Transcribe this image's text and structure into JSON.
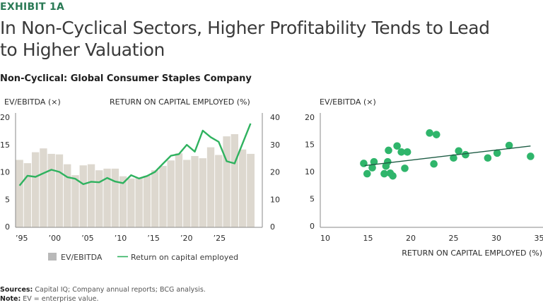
{
  "header": {
    "exhibit": "EXHIBIT 1A",
    "title": "In Non-Cyclical Sectors, Higher Profitability Tends to Lead to Higher Valuation",
    "subtitle": "Non-Cyclical: Global Consumer Staples Company"
  },
  "colors": {
    "bar": "#ddd8cf",
    "line": "#2fb25f",
    "dot": "#2fb56b",
    "trend": "#1d5c44",
    "legend_swatch": "#b9b9b9",
    "axis": "#8a8a8a"
  },
  "chart_data": [
    {
      "type": "bar+line",
      "title": "Non-Cyclical: Global Consumer Staples Company",
      "ylabel_left": "EV/EBITDA (×)",
      "ylabel_right": "RETURN ON CAPITAL EMPLOYED (%)",
      "ylim_left": [
        0,
        20
      ],
      "ylim_right": [
        0,
        40
      ],
      "yticks_left": [
        "0",
        "5",
        "10",
        "15",
        "20"
      ],
      "yticks_right": [
        "0",
        "10",
        "20",
        "30",
        "40"
      ],
      "xtick_labels": [
        "’95",
        "’00",
        "’05",
        "’10",
        "’15",
        "’20",
        "’25"
      ],
      "grid": false,
      "legend": {
        "placement": "bottom",
        "items": [
          "EV/EBITDA",
          "Return on capital employed"
        ]
      },
      "series": [
        {
          "name": "EV/EBITDA",
          "axis": "left",
          "type": "bar",
          "values": [
            12.2,
            11.6,
            13.6,
            14.3,
            13.3,
            13.2,
            11.4,
            9.4,
            11.2,
            11.4,
            10.3,
            10.6,
            10.6,
            9.2,
            8.8,
            8.9,
            9.3,
            10.3,
            11.1,
            12.1,
            13.4,
            12.2,
            12.9,
            12.5,
            14.5,
            13.1,
            16.5,
            16.9,
            14.1,
            13.3
          ]
        },
        {
          "name": "Return on capital employed",
          "axis": "right",
          "type": "line",
          "values": [
            15.0,
            18.6,
            18.2,
            19.5,
            20.8,
            20.0,
            18.1,
            17.5,
            15.5,
            16.4,
            16.2,
            17.8,
            16.5,
            15.9,
            18.8,
            17.6,
            18.5,
            20.0,
            23.0,
            25.9,
            26.5,
            29.9,
            27.4,
            35.1,
            32.7,
            31.0,
            23.9,
            23.1,
            30.4,
            37.7
          ]
        }
      ]
    },
    {
      "type": "scatter",
      "ylabel": "EV/EBITDA (×)",
      "xlabel": "RETURN ON CAPITAL EMPLOYED (%)",
      "xlim": [
        10,
        35
      ],
      "ylim": [
        0,
        20
      ],
      "xticks": [
        "10",
        "15",
        "20",
        "25",
        "30",
        "35"
      ],
      "yticks": [
        "0",
        "5",
        "10",
        "15",
        "20"
      ],
      "grid": false,
      "points": [
        [
          14.5,
          11.5
        ],
        [
          14.9,
          9.6
        ],
        [
          15.7,
          11.8
        ],
        [
          15.5,
          10.7
        ],
        [
          17.3,
          11.8
        ],
        [
          17.1,
          11.0
        ],
        [
          16.9,
          9.6
        ],
        [
          17.4,
          13.9
        ],
        [
          17.6,
          9.7
        ],
        [
          17.9,
          9.2
        ],
        [
          18.4,
          14.7
        ],
        [
          18.9,
          13.6
        ],
        [
          19.6,
          13.6
        ],
        [
          19.3,
          10.6
        ],
        [
          22.2,
          17.1
        ],
        [
          23.0,
          16.8
        ],
        [
          22.7,
          11.4
        ],
        [
          25.0,
          12.5
        ],
        [
          25.6,
          13.8
        ],
        [
          26.4,
          13.1
        ],
        [
          29.0,
          12.5
        ],
        [
          30.1,
          13.4
        ],
        [
          31.5,
          14.8
        ],
        [
          34.0,
          12.8
        ]
      ],
      "trendline": [
        [
          14.6,
          11.1
        ],
        [
          34.0,
          14.7
        ]
      ]
    }
  ],
  "footer": {
    "sources_label": "Sources:",
    "sources_text": " Capital IQ; Company annual reports; BCG analysis.",
    "note_label": "Note:",
    "note_text": " EV = enterprise value."
  }
}
